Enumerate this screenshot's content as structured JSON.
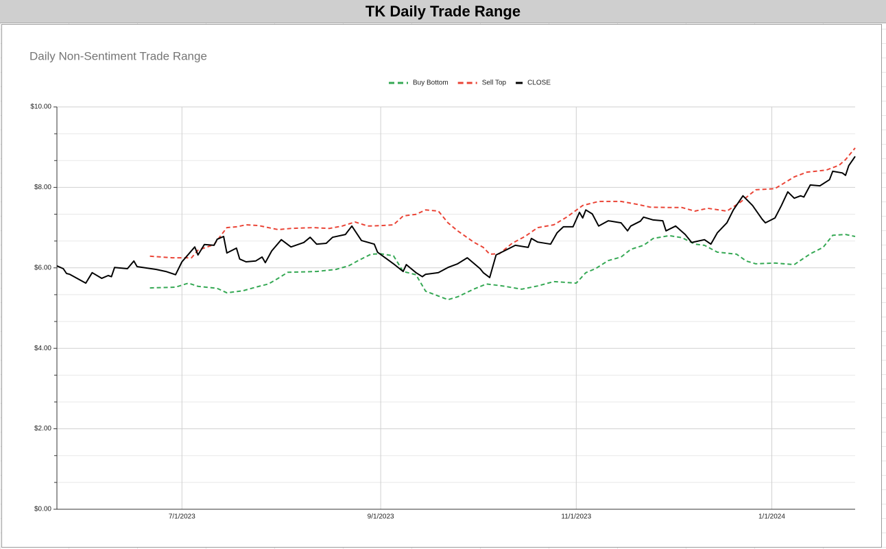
{
  "header": {
    "title": "TK Daily Trade Range"
  },
  "chart_data": {
    "type": "line",
    "title": "Daily Non-Sentiment Trade Range",
    "xlim": [
      "5/23/2023",
      "1/27/2024"
    ],
    "xticks": [
      "7/1/2023",
      "9/1/2023",
      "11/1/2023",
      "1/1/2024"
    ],
    "ylim": [
      0,
      10
    ],
    "yticks": [
      {
        "value": 0,
        "label": "$0.00"
      },
      {
        "value": 2,
        "label": "$2.00"
      },
      {
        "value": 4,
        "label": "$4.00"
      },
      {
        "value": 6,
        "label": "$6.00"
      },
      {
        "value": 8,
        "label": "$8.00"
      },
      {
        "value": 10,
        "label": "$10.00"
      }
    ],
    "y_minor_divisions": 3,
    "grid": true,
    "legend": "top",
    "series": [
      {
        "name": "Buy Bottom",
        "color": "#34a853",
        "dashed": true,
        "x": [
          "6/21/2023",
          "6/29/2023",
          "7/3/2023",
          "7/6/2023",
          "7/12/2023",
          "7/15/2023",
          "7/20/2023",
          "7/24/2023",
          "7/28/2023",
          "7/31/2023",
          "8/3/2023",
          "8/12/2023",
          "8/18/2023",
          "8/22/2023",
          "8/25/2023",
          "8/29/2023",
          "9/1/2023",
          "9/5/2023",
          "9/8/2023",
          "9/12/2023",
          "9/15/2023",
          "9/19/2023",
          "9/22/2023",
          "9/25/2023",
          "9/30/2023",
          "10/4/2023",
          "10/9/2023",
          "10/15/2023",
          "10/20/2023",
          "10/25/2023",
          "11/1/2023",
          "11/4/2023",
          "11/7/2023",
          "11/11/2023",
          "11/15/2023",
          "11/18/2023",
          "11/22/2023",
          "11/25/2023",
          "11/30/2023",
          "12/4/2023",
          "12/8/2023",
          "12/11/2023",
          "12/15/2023",
          "12/21/2023",
          "12/24/2023",
          "12/27/2023",
          "1/2/2024",
          "1/8/2024",
          "1/13/2024",
          "1/17/2024",
          "1/20/2024",
          "1/24/2024",
          "1/27/2024"
        ],
        "values": [
          5.5,
          5.52,
          5.62,
          5.54,
          5.49,
          5.38,
          5.43,
          5.52,
          5.6,
          5.74,
          5.89,
          5.91,
          5.96,
          6.05,
          6.18,
          6.34,
          6.35,
          6.3,
          5.91,
          5.83,
          5.42,
          5.3,
          5.21,
          5.28,
          5.47,
          5.6,
          5.55,
          5.47,
          5.55,
          5.66,
          5.62,
          5.88,
          5.98,
          6.18,
          6.27,
          6.46,
          6.56,
          6.73,
          6.8,
          6.75,
          6.59,
          6.56,
          6.39,
          6.34,
          6.17,
          6.1,
          6.12,
          6.08,
          6.35,
          6.51,
          6.81,
          6.83,
          6.78
        ]
      },
      {
        "name": "Sell Top",
        "color": "#ea4335",
        "dashed": true,
        "x": [
          "6/21/2023",
          "6/28/2023",
          "7/4/2023",
          "7/6/2023",
          "7/11/2023",
          "7/15/2023",
          "7/18/2023",
          "7/21/2023",
          "7/25/2023",
          "7/31/2023",
          "8/4/2023",
          "8/11/2023",
          "8/16/2023",
          "8/20/2023",
          "8/24/2023",
          "8/28/2023",
          "9/1/2023",
          "9/5/2023",
          "9/8/2023",
          "9/12/2023",
          "9/15/2023",
          "9/19/2023",
          "9/22/2023",
          "9/25/2023",
          "9/30/2023",
          "10/3/2023",
          "10/5/2023",
          "10/8/2023",
          "10/12/2023",
          "10/16/2023",
          "10/20/2023",
          "10/25/2023",
          "10/29/2023",
          "11/3/2023",
          "11/8/2023",
          "11/15/2023",
          "11/20/2023",
          "11/24/2023",
          "11/30/2023",
          "12/4/2023",
          "12/8/2023",
          "12/12/2023",
          "12/18/2023",
          "12/22/2023",
          "12/27/2023",
          "1/2/2024",
          "1/8/2024",
          "1/12/2024",
          "1/18/2024",
          "1/22/2024",
          "1/24/2024",
          "1/27/2024"
        ],
        "values": [
          6.29,
          6.25,
          6.25,
          6.44,
          6.58,
          7.0,
          7.02,
          7.07,
          7.05,
          6.95,
          6.98,
          7.0,
          6.98,
          7.04,
          7.14,
          7.04,
          7.05,
          7.07,
          7.29,
          7.33,
          7.44,
          7.41,
          7.12,
          6.92,
          6.64,
          6.51,
          6.34,
          6.35,
          6.61,
          6.78,
          7.0,
          7.07,
          7.26,
          7.55,
          7.65,
          7.65,
          7.58,
          7.51,
          7.5,
          7.5,
          7.41,
          7.48,
          7.41,
          7.62,
          7.94,
          7.97,
          8.26,
          8.38,
          8.43,
          8.55,
          8.69,
          8.98
        ]
      },
      {
        "name": "CLOSE",
        "color": "#000000",
        "dashed": false,
        "x": [
          "5/23/2023",
          "5/25/2023",
          "5/26/2023",
          "5/27/2023",
          "6/1/2023",
          "6/3/2023",
          "6/6/2023",
          "6/8/2023",
          "6/9/2023",
          "6/10/2023",
          "6/14/2023",
          "6/16/2023",
          "6/17/2023",
          "6/23/2023",
          "6/26/2023",
          "6/29/2023",
          "7/1/2023",
          "7/5/2023",
          "7/6/2023",
          "7/8/2023",
          "7/11/2023",
          "7/12/2023",
          "7/14/2023",
          "7/15/2023",
          "7/18/2023",
          "7/19/2023",
          "7/21/2023",
          "7/24/2023",
          "7/26/2023",
          "7/27/2023",
          "7/29/2023",
          "8/1/2023",
          "8/4/2023",
          "8/8/2023",
          "8/10/2023",
          "8/12/2023",
          "8/15/2023",
          "8/17/2023",
          "8/21/2023",
          "8/23/2023",
          "8/26/2023",
          "8/30/2023",
          "8/31/2023",
          "9/5/2023",
          "9/8/2023",
          "9/9/2023",
          "9/12/2023",
          "9/14/2023",
          "9/15/2023",
          "9/19/2023",
          "9/22/2023",
          "9/25/2023",
          "9/28/2023",
          "10/2/2023",
          "10/3/2023",
          "10/5/2023",
          "10/7/2023",
          "10/10/2023",
          "10/13/2023",
          "10/17/2023",
          "10/18/2023",
          "10/20/2023",
          "10/24/2023",
          "10/26/2023",
          "10/28/2023",
          "10/31/2023",
          "11/2/2023",
          "11/3/2023",
          "11/4/2023",
          "11/6/2023",
          "11/8/2023",
          "11/11/2023",
          "11/15/2023",
          "11/17/2023",
          "11/18/2023",
          "11/21/2023",
          "11/22/2023",
          "11/25/2023",
          "11/28/2023",
          "11/29/2023",
          "12/2/2023",
          "12/5/2023",
          "12/7/2023",
          "12/11/2023",
          "12/13/2023",
          "12/15/2023",
          "12/18/2023",
          "12/20/2023",
          "12/23/2023",
          "12/26/2023",
          "12/29/2023",
          "12/30/2023",
          "1/2/2024",
          "1/4/2024",
          "1/6/2024",
          "1/8/2024",
          "1/10/2024",
          "1/11/2024",
          "1/13/2024",
          "1/16/2024",
          "1/19/2024",
          "1/20/2024",
          "1/23/2024",
          "1/24/2024",
          "1/25/2024",
          "1/27/2024"
        ],
        "values": [
          6.05,
          5.98,
          5.86,
          5.84,
          5.62,
          5.88,
          5.74,
          5.81,
          5.78,
          6.01,
          5.98,
          6.17,
          6.03,
          5.96,
          5.91,
          5.83,
          6.15,
          6.52,
          6.32,
          6.58,
          6.56,
          6.71,
          6.78,
          6.37,
          6.49,
          6.22,
          6.15,
          6.17,
          6.27,
          6.13,
          6.42,
          6.7,
          6.52,
          6.63,
          6.76,
          6.59,
          6.61,
          6.76,
          6.83,
          7.04,
          6.68,
          6.59,
          6.39,
          6.1,
          5.91,
          6.08,
          5.88,
          5.78,
          5.84,
          5.88,
          6.01,
          6.1,
          6.25,
          5.98,
          5.88,
          5.76,
          6.32,
          6.44,
          6.56,
          6.51,
          6.73,
          6.64,
          6.59,
          6.87,
          7.02,
          7.02,
          7.38,
          7.24,
          7.44,
          7.34,
          7.04,
          7.17,
          7.12,
          6.92,
          7.04,
          7.16,
          7.26,
          7.19,
          7.17,
          6.92,
          7.04,
          6.83,
          6.63,
          6.7,
          6.59,
          6.87,
          7.12,
          7.44,
          7.79,
          7.55,
          7.21,
          7.12,
          7.24,
          7.55,
          7.89,
          7.73,
          7.79,
          7.76,
          8.06,
          8.04,
          8.19,
          8.4,
          8.36,
          8.3,
          8.54,
          8.77
        ]
      }
    ]
  }
}
